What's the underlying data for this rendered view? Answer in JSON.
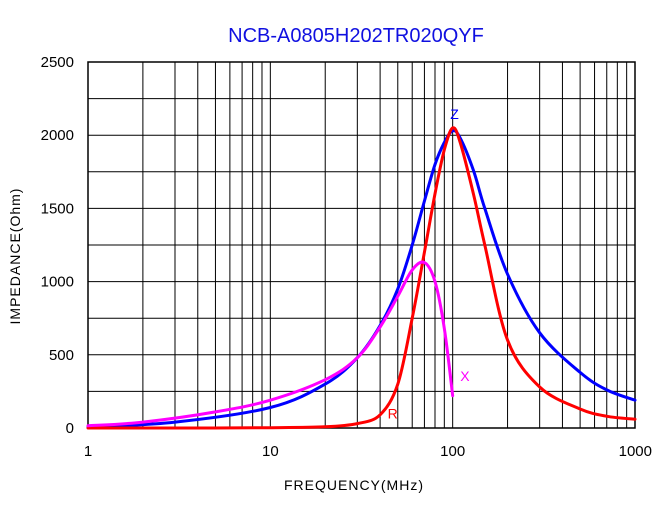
{
  "chart_data": {
    "type": "line",
    "title": "NCB-A0805H202TR020QYF",
    "xlabel": "FREQUENCY(MHz)",
    "ylabel": "IMPEDANCE(Ohm)",
    "x_scale": "log",
    "xlim": [
      1,
      1000
    ],
    "ylim": [
      0,
      2500
    ],
    "x_ticks": [
      {
        "value": 1,
        "label": "1"
      },
      {
        "value": 10,
        "label": "10"
      },
      {
        "value": 100,
        "label": "100"
      },
      {
        "value": 1000,
        "label": "1000"
      }
    ],
    "y_ticks": [
      {
        "value": 0,
        "label": "0"
      },
      {
        "value": 500,
        "label": "500"
      },
      {
        "value": 1000,
        "label": "1000"
      },
      {
        "value": 1500,
        "label": "1500"
      },
      {
        "value": 2000,
        "label": "2000"
      },
      {
        "value": 2500,
        "label": "2500"
      }
    ],
    "grid": true,
    "series": [
      {
        "name": "Z",
        "label": "Z",
        "color": "#0000ff",
        "x": [
          1,
          3,
          10,
          20,
          30,
          40,
          50,
          60,
          70,
          80,
          90,
          100,
          110,
          130,
          150,
          200,
          300,
          500,
          700,
          1000
        ],
        "y": [
          5,
          40,
          140,
          300,
          480,
          700,
          950,
          1250,
          1550,
          1800,
          1950,
          2030,
          1980,
          1760,
          1500,
          1050,
          650,
          380,
          260,
          190
        ],
        "label_at": {
          "x": 97,
          "y": 2110
        }
      },
      {
        "name": "R",
        "label": "R",
        "color": "#ff0000",
        "x": [
          1,
          3,
          10,
          20,
          30,
          40,
          50,
          60,
          70,
          80,
          90,
          100,
          110,
          130,
          150,
          200,
          300,
          500,
          700,
          1000
        ],
        "y": [
          0,
          0,
          2,
          8,
          30,
          90,
          300,
          750,
          1200,
          1600,
          1900,
          2050,
          1950,
          1600,
          1250,
          600,
          280,
          130,
          80,
          60
        ],
        "label_at": {
          "x": 44,
          "y": 65
        }
      },
      {
        "name": "X",
        "label": "X",
        "color": "#ff00ff",
        "x": [
          1,
          2,
          5,
          10,
          20,
          30,
          40,
          50,
          60,
          70,
          80,
          90,
          100
        ],
        "y": [
          15,
          40,
          110,
          190,
          330,
          480,
          690,
          900,
          1080,
          1130,
          1000,
          680,
          220
        ],
        "label_at": {
          "x": 110,
          "y": 320
        }
      }
    ]
  }
}
